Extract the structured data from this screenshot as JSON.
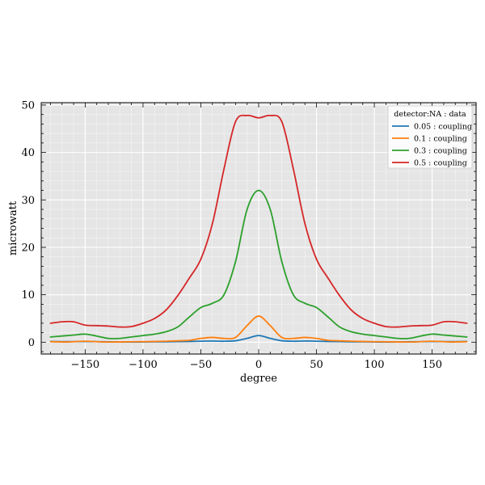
{
  "chart_data": {
    "type": "line",
    "xlabel": "degree",
    "ylabel": "microwatt",
    "xlim": [
      -188,
      188
    ],
    "ylim": [
      -2.5,
      50.5
    ],
    "xticks": [
      -150,
      -100,
      -50,
      0,
      50,
      100,
      150
    ],
    "yticks": [
      0,
      10,
      20,
      30,
      40,
      50
    ],
    "xtick_labels": [
      "−150",
      "−100",
      "−50",
      "0",
      "50",
      "100",
      "150"
    ],
    "ytick_labels": [
      "0",
      "10",
      "20",
      "30",
      "40",
      "50"
    ],
    "grid": true,
    "background": "#e5e5e5",
    "legend": {
      "title": "detector:NA : data",
      "placement": "top-right"
    },
    "series": [
      {
        "name": "0.05 : coupling",
        "color": "#1f77b4",
        "x": [
          -180,
          -165,
          -150,
          -135,
          -120,
          -105,
          -90,
          -75,
          -60,
          -50,
          -40,
          -30,
          -20,
          -10,
          0,
          10,
          20,
          30,
          40,
          50,
          60,
          75,
          90,
          105,
          120,
          135,
          150,
          165,
          180
        ],
        "y": [
          0.15,
          0.12,
          0.15,
          0.1,
          0.05,
          0.05,
          0.08,
          0.1,
          0.15,
          0.2,
          0.25,
          0.2,
          0.3,
          0.8,
          1.4,
          0.8,
          0.3,
          0.2,
          0.25,
          0.2,
          0.15,
          0.1,
          0.08,
          0.05,
          0.05,
          0.1,
          0.15,
          0.12,
          0.15
        ]
      },
      {
        "name": "0.1 : coupling",
        "color": "#ff7f0e",
        "x": [
          -180,
          -165,
          -150,
          -135,
          -120,
          -105,
          -90,
          -75,
          -60,
          -50,
          -40,
          -30,
          -20,
          -10,
          0,
          10,
          20,
          30,
          40,
          50,
          60,
          75,
          90,
          105,
          120,
          135,
          150,
          165,
          180
        ],
        "y": [
          0.1,
          0.05,
          0.2,
          0.05,
          0.05,
          0.1,
          0.15,
          0.25,
          0.4,
          0.8,
          1.0,
          0.8,
          1.0,
          3.5,
          5.5,
          3.5,
          1.0,
          0.8,
          1.0,
          0.8,
          0.4,
          0.25,
          0.15,
          0.1,
          0.05,
          0.05,
          0.2,
          0.05,
          0.1
        ]
      },
      {
        "name": "0.3 : coupling",
        "color": "#2ca02c",
        "x": [
          -180,
          -170,
          -160,
          -150,
          -140,
          -130,
          -120,
          -110,
          -100,
          -90,
          -80,
          -70,
          -60,
          -50,
          -40,
          -30,
          -20,
          -10,
          0,
          10,
          20,
          30,
          40,
          50,
          60,
          70,
          80,
          90,
          100,
          110,
          120,
          130,
          140,
          150,
          160,
          170,
          180
        ],
        "y": [
          1.1,
          1.3,
          1.5,
          1.7,
          1.3,
          0.8,
          0.8,
          1.1,
          1.4,
          1.7,
          2.2,
          3.2,
          5.3,
          7.3,
          8.2,
          10.0,
          17.0,
          28.0,
          32.0,
          28.0,
          17.0,
          10.0,
          8.2,
          7.3,
          5.3,
          3.2,
          2.2,
          1.7,
          1.4,
          1.1,
          0.8,
          0.8,
          1.3,
          1.7,
          1.5,
          1.3,
          1.1
        ]
      },
      {
        "name": "0.5 : coupling",
        "color": "#d62728",
        "x": [
          -180,
          -170,
          -160,
          -150,
          -140,
          -130,
          -120,
          -110,
          -100,
          -90,
          -80,
          -70,
          -60,
          -50,
          -40,
          -30,
          -20,
          -10,
          0,
          10,
          20,
          30,
          40,
          50,
          60,
          70,
          80,
          90,
          100,
          110,
          120,
          130,
          140,
          150,
          160,
          170,
          180
        ],
        "y": [
          4.0,
          4.3,
          4.3,
          3.6,
          3.5,
          3.4,
          3.2,
          3.3,
          4.0,
          5.0,
          6.8,
          9.8,
          13.5,
          17.5,
          25.0,
          36.5,
          46.5,
          47.8,
          47.3,
          47.8,
          46.5,
          36.5,
          25.0,
          17.5,
          13.5,
          9.8,
          6.8,
          5.0,
          4.0,
          3.3,
          3.2,
          3.4,
          3.5,
          3.6,
          4.3,
          4.3,
          4.0
        ]
      }
    ]
  }
}
